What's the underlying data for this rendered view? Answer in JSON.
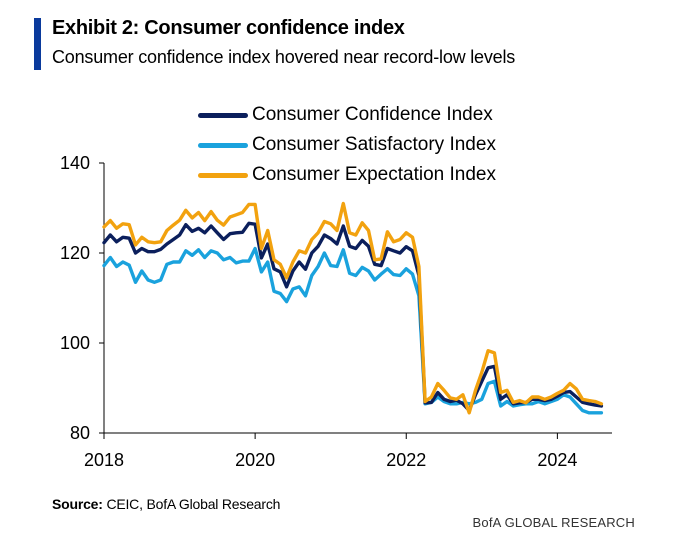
{
  "header": {
    "title": "Exhibit 2: Consumer confidence index",
    "subtitle": "Consumer confidence index hovered near record-low levels"
  },
  "chart_data": {
    "type": "line",
    "title": "Consumer confidence index",
    "xlabel": "",
    "ylabel": "",
    "xlim": [
      2018.0,
      2024.67
    ],
    "ylim": [
      80,
      140
    ],
    "yticks": [
      80,
      100,
      120,
      140
    ],
    "xticks": [
      2018,
      2020,
      2022,
      2024
    ],
    "x": [
      2018.0,
      2018.083,
      2018.167,
      2018.25,
      2018.333,
      2018.417,
      2018.5,
      2018.583,
      2018.667,
      2018.75,
      2018.833,
      2018.917,
      2019.0,
      2019.083,
      2019.167,
      2019.25,
      2019.333,
      2019.417,
      2019.5,
      2019.583,
      2019.667,
      2019.75,
      2019.833,
      2019.917,
      2020.0,
      2020.083,
      2020.167,
      2020.25,
      2020.333,
      2020.417,
      2020.5,
      2020.583,
      2020.667,
      2020.75,
      2020.833,
      2020.917,
      2021.0,
      2021.083,
      2021.167,
      2021.25,
      2021.333,
      2021.417,
      2021.5,
      2021.583,
      2021.667,
      2021.75,
      2021.833,
      2021.917,
      2022.0,
      2022.083,
      2022.167,
      2022.25,
      2022.333,
      2022.417,
      2022.5,
      2022.583,
      2022.667,
      2022.75,
      2022.833,
      2022.917,
      2023.0,
      2023.083,
      2023.167,
      2023.25,
      2023.333,
      2023.417,
      2023.5,
      2023.583,
      2023.667,
      2023.75,
      2023.833,
      2023.917,
      2024.0,
      2024.083,
      2024.167,
      2024.25,
      2024.333,
      2024.417,
      2024.5,
      2024.583
    ],
    "series": [
      {
        "name": "Consumer Confidence Index",
        "color": "#0b1f5c",
        "values": [
          122.3,
          124.0,
          122.5,
          123.5,
          123.3,
          120.0,
          121.0,
          120.3,
          120.3,
          120.8,
          122.0,
          123.0,
          124.0,
          126.3,
          124.8,
          125.5,
          124.5,
          126.0,
          124.5,
          123.0,
          124.3,
          124.5,
          124.6,
          126.6,
          126.4,
          118.9,
          122.0,
          116.5,
          115.8,
          112.5,
          116.0,
          118.0,
          116.4,
          120.0,
          121.5,
          124.0,
          123.2,
          122.0,
          126.0,
          121.5,
          121.0,
          122.8,
          121.5,
          117.5,
          117.2,
          121.0,
          120.5,
          120.0,
          121.4,
          120.5,
          115.0,
          86.7,
          86.8,
          89.0,
          87.5,
          87.0,
          87.3,
          86.5,
          85.0,
          88.5,
          91.5,
          94.5,
          94.8,
          87.5,
          88.5,
          86.5,
          86.7,
          86.8,
          87.5,
          87.5,
          87.2,
          87.5,
          88.2,
          89.0,
          89.2,
          88.0,
          86.8,
          86.5,
          86.2,
          86.0
        ]
      },
      {
        "name": "Consumer Satisfactory Index",
        "color": "#1aa2dd",
        "values": [
          117.2,
          119.0,
          117.0,
          118.0,
          117.3,
          113.5,
          116.0,
          114.0,
          113.5,
          114.0,
          117.5,
          118.0,
          118.0,
          120.5,
          119.5,
          120.7,
          119.0,
          120.5,
          120.0,
          118.5,
          119.0,
          117.8,
          118.2,
          118.2,
          121.0,
          115.8,
          118.0,
          111.5,
          111.0,
          109.2,
          112.0,
          112.5,
          110.5,
          115.0,
          117.0,
          120.0,
          117.2,
          117.0,
          120.7,
          115.5,
          115.0,
          116.8,
          116.0,
          114.0,
          115.3,
          116.5,
          115.2,
          115.0,
          116.5,
          115.3,
          110.5,
          86.5,
          86.8,
          88.0,
          87.0,
          86.5,
          86.5,
          86.8,
          86.5,
          86.8,
          87.5,
          91.0,
          91.5,
          86.0,
          87.0,
          86.0,
          86.3,
          86.5,
          86.5,
          87.0,
          86.5,
          87.0,
          87.5,
          88.5,
          88.0,
          86.5,
          85.0,
          84.5,
          84.5,
          84.5
        ]
      },
      {
        "name": "Consumer Expectation Index",
        "color": "#f2a20f",
        "values": [
          125.8,
          127.2,
          125.5,
          126.5,
          126.3,
          121.8,
          123.5,
          122.5,
          122.3,
          122.5,
          125.0,
          126.2,
          127.3,
          129.5,
          127.8,
          129.0,
          127.2,
          129.2,
          127.3,
          126.2,
          128.0,
          128.5,
          129.0,
          130.8,
          130.8,
          121.0,
          125.0,
          118.5,
          117.5,
          114.5,
          118.0,
          120.5,
          120.0,
          123.0,
          124.5,
          127.0,
          126.5,
          125.0,
          131.0,
          124.5,
          124.0,
          126.7,
          125.0,
          118.5,
          118.7,
          124.7,
          122.5,
          123.0,
          124.5,
          123.5,
          117.0,
          87.0,
          88.0,
          91.0,
          89.5,
          87.8,
          87.5,
          88.5,
          84.5,
          89.5,
          93.5,
          98.3,
          97.8,
          89.0,
          89.5,
          86.8,
          87.2,
          86.7,
          88.0,
          88.0,
          87.5,
          88.0,
          88.8,
          89.5,
          91.0,
          89.8,
          87.5,
          87.2,
          87.0,
          86.5
        ]
      }
    ],
    "legend_position": "top-center"
  },
  "source": {
    "label": "Source:",
    "text": "CEIC, BofA Global Research"
  },
  "footer": {
    "brand": "BofA GLOBAL RESEARCH"
  }
}
